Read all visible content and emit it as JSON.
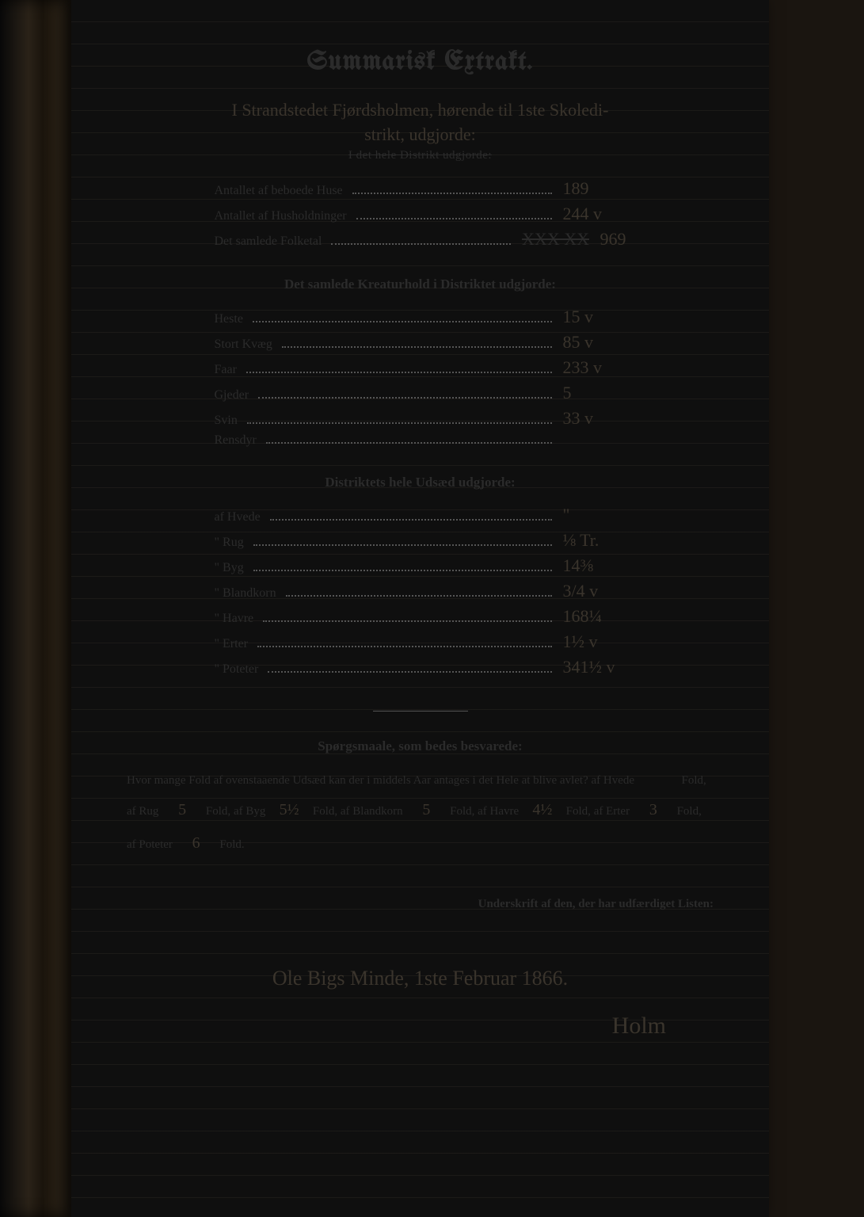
{
  "title": "Summarisk Extrakt.",
  "handnote_line1": "I Strandstedet Fjørdsholmen, hørende til 1ste Skoledi-",
  "handnote_line2": "strikt, udgjorde:",
  "struck_heading": "I det hele Distrikt udgjorde:",
  "section1": {
    "rows": [
      {
        "label": "Antallet af beboede Huse",
        "value": "189"
      },
      {
        "label": "Antallet af Husholdninger",
        "value": "244 v"
      },
      {
        "label": "Det samlede Folketal",
        "value": "969",
        "scratched": "XXX XX"
      }
    ]
  },
  "section2": {
    "heading": "Det samlede Kreaturhold i Distriktet udgjorde:",
    "rows": [
      {
        "label": "Heste",
        "value": "15 v"
      },
      {
        "label": "Stort Kvæg",
        "value": "85 v"
      },
      {
        "label": "Faar",
        "value": "233 v"
      },
      {
        "label": "Gjeder",
        "value": "5"
      },
      {
        "label": "Svin",
        "value": "33 v"
      },
      {
        "label": "Rensdyr",
        "value": ""
      }
    ]
  },
  "section3": {
    "heading": "Distriktets hele Udsæd udgjorde:",
    "rows": [
      {
        "label": "af Hvede",
        "value": "\""
      },
      {
        "label": "\"  Rug",
        "value": "⅛ Tr."
      },
      {
        "label": "\"  Byg",
        "value": "14⅜"
      },
      {
        "label": "\"  Blandkorn",
        "value": "3/4 v"
      },
      {
        "label": "\"  Havre",
        "value": "168¼"
      },
      {
        "label": "\"  Erter",
        "value": "1½ v"
      },
      {
        "label": "\"  Poteter",
        "value": "341½ v"
      }
    ]
  },
  "questions": {
    "heading": "Spørgsmaale, som bedes besvarede:",
    "lead": "Hvor mange Fold af ovenstaaende Udsæd kan der i middels Aar antages i det Hele at blive avlet?  af Hvede",
    "hvede": "",
    "rug": "5",
    "byg": "5½",
    "blandkorn": "5",
    "havre": "4½",
    "erter": "3",
    "poteter": "6",
    "fold_label": "Fold,",
    "fold_end": "Fold."
  },
  "under_sign_label": "Underskrift af den, der har udfærdiget Listen:",
  "place_date": "Ole Bigs Minde, 1ste Februar 1866.",
  "signature": "Holm"
}
